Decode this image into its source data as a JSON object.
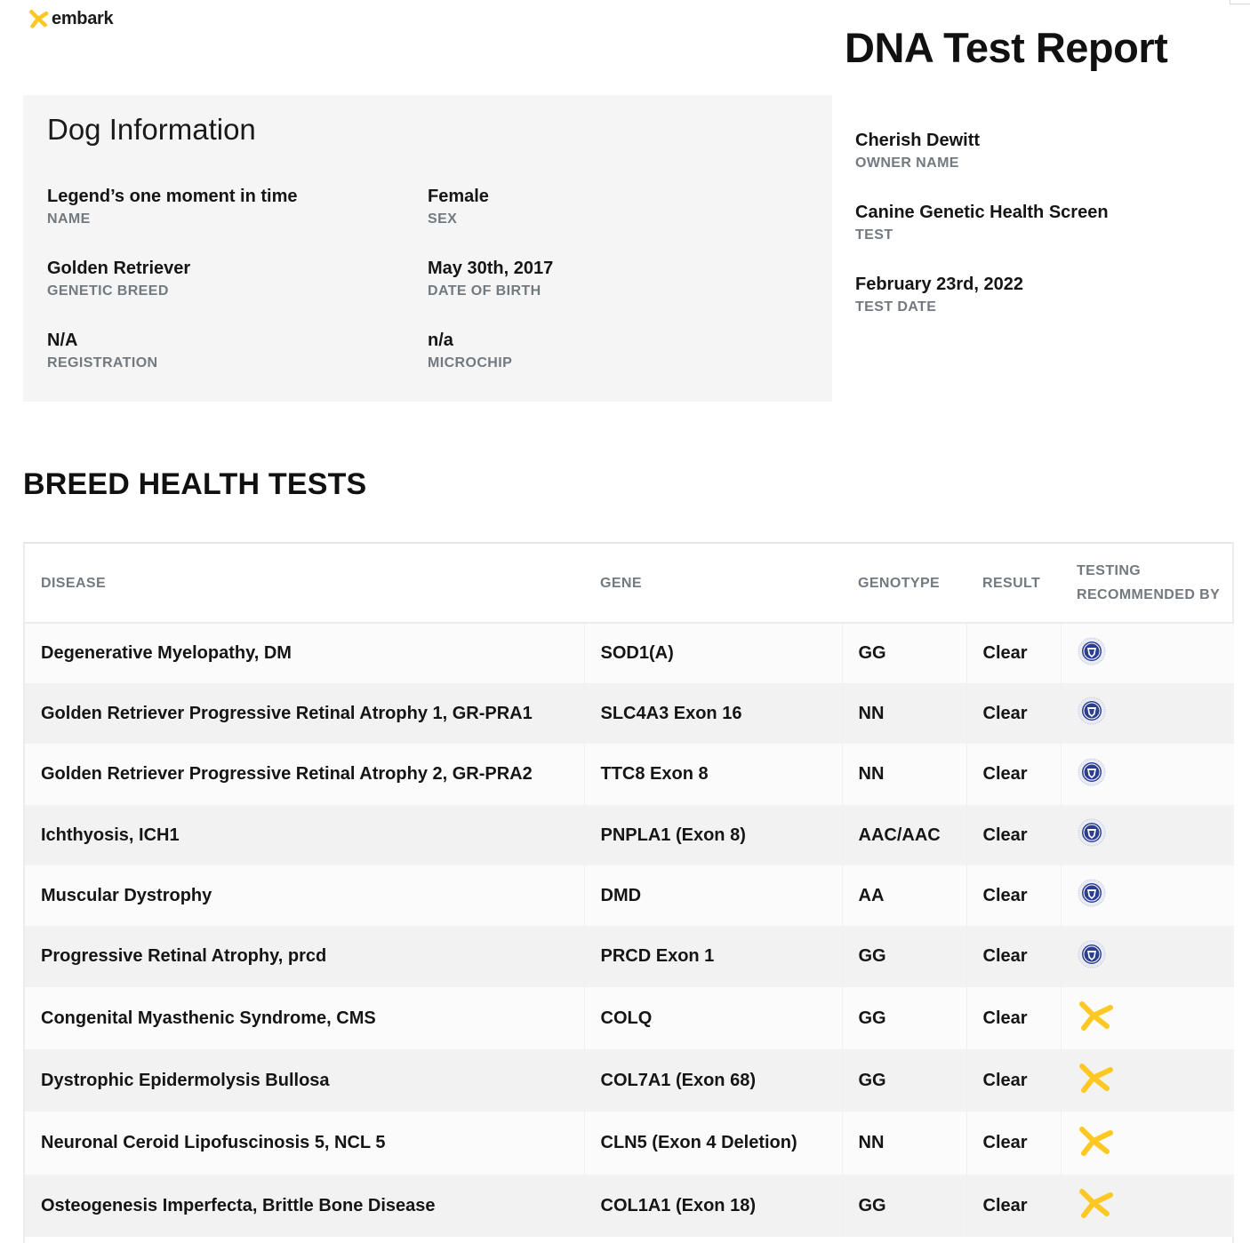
{
  "brand": {
    "logo_text": "embark",
    "logo_color": "#fdc823"
  },
  "report_title": "DNA Test Report",
  "dog_info": {
    "title": "Dog Information",
    "name": {
      "value": "Legend’s one moment in time",
      "label": "NAME"
    },
    "sex": {
      "value": "Female",
      "label": "SEX"
    },
    "breed": {
      "value": "Golden Retriever",
      "label": "GENETIC BREED"
    },
    "dob": {
      "value": "May 30th, 2017",
      "label": "DATE OF BIRTH"
    },
    "registration": {
      "value": "N/A",
      "label": "REGISTRATION"
    },
    "microchip": {
      "value": "n/a",
      "label": "MICROCHIP"
    }
  },
  "owner": {
    "owner_name": {
      "value": "Cherish Dewitt",
      "label": "OWNER NAME"
    },
    "test": {
      "value": "Canine Genetic Health Screen",
      "label": "TEST"
    },
    "test_date": {
      "value": "February 23rd, 2022",
      "label": "TEST DATE"
    }
  },
  "breed_health": {
    "title": "BREED HEALTH TESTS",
    "columns": {
      "disease": "DISEASE",
      "gene": "GENE",
      "genotype": "GENOTYPE",
      "result": "RESULT",
      "testing_line1": "TESTING",
      "testing_line2": "RECOMMENDED BY"
    },
    "rows": [
      {
        "disease": "Degenerative Myelopathy, DM",
        "gene": "SOD1(A)",
        "genotype": "GG",
        "result": "Clear",
        "recommended_by_icon": "ofa-seal-icon"
      },
      {
        "disease": "Golden Retriever Progressive Retinal Atrophy 1, GR-PRA1",
        "gene": "SLC4A3 Exon 16",
        "genotype": "NN",
        "result": "Clear",
        "recommended_by_icon": "ofa-seal-icon"
      },
      {
        "disease": "Golden Retriever Progressive Retinal Atrophy 2, GR-PRA2",
        "gene": "TTC8 Exon 8",
        "genotype": "NN",
        "result": "Clear",
        "recommended_by_icon": "ofa-seal-icon"
      },
      {
        "disease": "Ichthyosis, ICH1",
        "gene": "PNPLA1 (Exon 8)",
        "genotype": "AAC/AAC",
        "result": "Clear",
        "recommended_by_icon": "ofa-seal-icon"
      },
      {
        "disease": "Muscular Dystrophy",
        "gene": "DMD",
        "genotype": "AA",
        "result": "Clear",
        "recommended_by_icon": "ofa-seal-icon"
      },
      {
        "disease": "Progressive Retinal Atrophy, prcd",
        "gene": "PRCD Exon 1",
        "genotype": "GG",
        "result": "Clear",
        "recommended_by_icon": "ofa-seal-icon"
      },
      {
        "disease": "Congenital Myasthenic Syndrome, CMS",
        "gene": "COLQ",
        "genotype": "GG",
        "result": "Clear",
        "recommended_by_icon": "embark-logo-icon"
      },
      {
        "disease": "Dystrophic Epidermolysis Bullosa",
        "gene": "COL7A1 (Exon 68)",
        "genotype": "GG",
        "result": "Clear",
        "recommended_by_icon": "embark-logo-icon"
      },
      {
        "disease": "Neuronal Ceroid Lipofuscinosis 5, NCL 5",
        "gene": "CLN5 (Exon 4 Deletion)",
        "genotype": "NN",
        "result": "Clear",
        "recommended_by_icon": "embark-logo-icon"
      },
      {
        "disease": "Osteogenesis Imperfecta, Brittle Bone Disease",
        "gene": "COL1A1 (Exon 18)",
        "genotype": "GG",
        "result": "Clear",
        "recommended_by_icon": "embark-logo-icon"
      }
    ]
  }
}
